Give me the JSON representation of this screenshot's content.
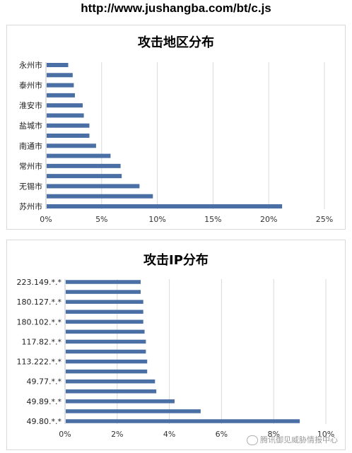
{
  "header": {
    "url": "http://www.jushangba.com/bt/c.js"
  },
  "watermark": "腾讯御见威胁情报中心",
  "chart_data": [
    {
      "type": "bar",
      "orientation": "horizontal",
      "title": "攻击地区分布",
      "category_labels": [
        "苏州市",
        "",
        "无锡市",
        "",
        "常州市",
        "",
        "南通市",
        "",
        "盐城市",
        "",
        "淮安市",
        "",
        "泰州市",
        "",
        "永州市"
      ],
      "values": [
        21.2,
        9.6,
        8.4,
        6.8,
        6.7,
        5.8,
        4.5,
        3.9,
        3.9,
        3.4,
        3.3,
        2.6,
        2.5,
        2.4,
        2.0
      ],
      "unit": "%",
      "xlim": [
        0,
        25
      ],
      "xticks": [
        "0%",
        "5%",
        "10%",
        "15%",
        "20%",
        "25%"
      ],
      "grid": true,
      "bar_color": "#4a6fa5"
    },
    {
      "type": "bar",
      "orientation": "horizontal",
      "title": "攻击IP分布",
      "category_labels": [
        "49.80.*.*",
        "",
        "49.89.*.*",
        "",
        "49.77.*.*",
        "",
        "113.222.*.*",
        "",
        "117.82.*.*",
        "",
        "180.102.*.*",
        "",
        "180.127.*.*",
        "",
        "223.149.*.*"
      ],
      "values": [
        9.0,
        5.2,
        4.2,
        3.5,
        3.45,
        3.15,
        3.15,
        3.1,
        3.1,
        3.05,
        3.0,
        3.0,
        3.0,
        2.9,
        2.9
      ],
      "unit": "%",
      "xlim": [
        0,
        10
      ],
      "xticks": [
        "0%",
        "2%",
        "4%",
        "6%",
        "8%",
        "10%"
      ],
      "grid": true,
      "bar_color": "#4a6fa5"
    }
  ]
}
